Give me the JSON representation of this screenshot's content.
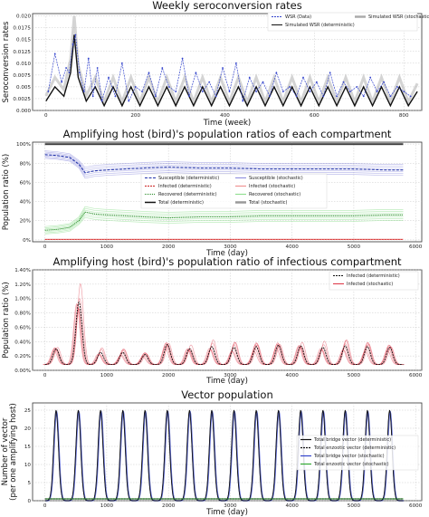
{
  "chart_data": [
    {
      "type": "line",
      "title": "Weekly seroconversion rates",
      "xlabel": "Time (week)",
      "ylabel": "Seroconversion rates",
      "xlim": [
        -30,
        840
      ],
      "ylim": [
        0.0,
        0.0205
      ],
      "xticks": [
        0,
        200,
        400,
        600,
        800
      ],
      "yticks": [
        0.0,
        0.0025,
        0.005,
        0.0075,
        0.01,
        0.0125,
        0.015,
        0.0175,
        0.02
      ],
      "xtick_labels": [
        "0",
        "200",
        "400",
        "600",
        "800"
      ],
      "ytick_labels": [
        "0.000",
        "0.0025",
        "0.005",
        "0.0075",
        "0.010",
        "0.0125",
        "0.015",
        "0.0175",
        "0.020"
      ],
      "grid": true,
      "legend_placement": "top-right",
      "series": [
        {
          "name": "WSR (Data)",
          "color": "#3344cc",
          "style": "dashed-markers",
          "x": [
            5,
            20,
            35,
            45,
            52,
            60,
            66,
            75,
            85,
            95,
            105,
            115,
            125,
            140,
            155,
            170,
            185,
            200,
            215,
            230,
            245,
            260,
            275,
            290,
            305,
            320,
            335,
            350,
            365,
            380,
            395,
            410,
            425,
            440,
            455,
            470,
            485,
            500,
            515,
            530,
            545,
            560,
            575,
            590,
            605,
            620,
            635,
            650,
            665,
            680,
            695,
            710,
            725,
            740,
            755,
            770,
            785,
            800,
            815
          ],
          "values": [
            0.004,
            0.012,
            0.006,
            0.009,
            0.008,
            0.014,
            0.016,
            0.008,
            0.004,
            0.011,
            0.003,
            0.009,
            0.002,
            0.007,
            0.003,
            0.01,
            0.002,
            0.005,
            0.004,
            0.008,
            0.003,
            0.009,
            0.005,
            0.004,
            0.011,
            0.003,
            0.008,
            0.004,
            0.006,
            0.003,
            0.009,
            0.004,
            0.01,
            0.002,
            0.007,
            0.004,
            0.006,
            0.003,
            0.008,
            0.004,
            0.005,
            0.003,
            0.007,
            0.004,
            0.006,
            0.003,
            0.008,
            0.003,
            0.006,
            0.004,
            0.005,
            0.003,
            0.007,
            0.004,
            0.006,
            0.003,
            0.005,
            0.004,
            0.003
          ]
        },
        {
          "name": "Simulated WSR (deterministic)",
          "color": "#111111",
          "style": "solid",
          "x": [
            0,
            20,
            40,
            55,
            63,
            72,
            90,
            110,
            130,
            150,
            170,
            190,
            210,
            230,
            250,
            270,
            290,
            310,
            330,
            350,
            370,
            390,
            410,
            430,
            450,
            470,
            490,
            510,
            530,
            550,
            570,
            590,
            610,
            630,
            650,
            670,
            690,
            710,
            730,
            750,
            770,
            790,
            810,
            830
          ],
          "values": [
            0.002,
            0.005,
            0.003,
            0.008,
            0.016,
            0.007,
            0.002,
            0.005,
            0.001,
            0.005,
            0.001,
            0.005,
            0.001,
            0.005,
            0.001,
            0.005,
            0.001,
            0.005,
            0.001,
            0.005,
            0.001,
            0.005,
            0.001,
            0.005,
            0.001,
            0.005,
            0.001,
            0.005,
            0.001,
            0.005,
            0.001,
            0.005,
            0.001,
            0.005,
            0.001,
            0.005,
            0.001,
            0.005,
            0.001,
            0.005,
            0.001,
            0.005,
            0.001,
            0.004
          ]
        },
        {
          "name": "Simulated WSR (stochastic)",
          "color": "#aaaaaa",
          "style": "band"
        }
      ]
    },
    {
      "type": "line",
      "title": "Amplifying host (bird)'s population ratios of each compartment",
      "xlabel": "Time (day)",
      "ylabel": "Population ratio (%)",
      "xlim": [
        -200,
        6100
      ],
      "ylim": [
        -2,
        102
      ],
      "xticks": [
        0,
        1000,
        2000,
        3000,
        4000,
        5000,
        6000
      ],
      "yticks": [
        0,
        20,
        40,
        60,
        80,
        100
      ],
      "xtick_labels": [
        "0",
        "1000",
        "2000",
        "3000",
        "4000",
        "5000",
        "6000"
      ],
      "ytick_labels": [
        "0%",
        "20%",
        "40%",
        "60%",
        "80%",
        "100%"
      ],
      "grid": true,
      "legend_placement": "center",
      "series": [
        {
          "name": "Susceptible (deterministic)",
          "color": "#2233aa",
          "style": "dashed",
          "x": [
            0,
            200,
            400,
            550,
            650,
            800,
            1000,
            1300,
            1600,
            2000,
            2500,
            3000,
            3500,
            4000,
            4500,
            5000,
            5500,
            5800
          ],
          "values": [
            89,
            88,
            86,
            79,
            70,
            72,
            73,
            74,
            75,
            76,
            75,
            75,
            74,
            74,
            74,
            74,
            73,
            73
          ]
        },
        {
          "name": "Susceptible (stochastic)",
          "color": "#8888dd",
          "style": "band"
        },
        {
          "name": "Infected (deterministic)",
          "color": "#cc2222",
          "style": "dashed",
          "x": [
            0,
            1000,
            2000,
            3000,
            4000,
            5000,
            5800
          ],
          "values": [
            0.5,
            0.5,
            0.5,
            0.5,
            0.5,
            0.5,
            0.5
          ]
        },
        {
          "name": "Infected (stochastic)",
          "color": "#ee8888",
          "style": "band"
        },
        {
          "name": "Recovered (deterministic)",
          "color": "#228822",
          "style": "dotted",
          "x": [
            0,
            200,
            400,
            550,
            650,
            800,
            1000,
            1300,
            1600,
            2000,
            2500,
            3000,
            3500,
            4000,
            4500,
            5000,
            5500,
            5800
          ],
          "values": [
            10,
            11,
            13,
            20,
            29,
            27,
            26,
            25,
            24,
            23,
            24,
            24,
            25,
            25,
            25,
            25,
            26,
            26
          ]
        },
        {
          "name": "Recovered (stochastic)",
          "color": "#88dd88",
          "style": "band"
        },
        {
          "name": "Total (deterministic)",
          "color": "#111111",
          "style": "solid",
          "x": [
            0,
            5800
          ],
          "values": [
            100,
            100
          ]
        },
        {
          "name": "Total (stochastic)",
          "color": "#999999",
          "style": "band"
        }
      ]
    },
    {
      "type": "line",
      "title": "Amplifying host (bird)'s population ratio of infectious compartment",
      "xlabel": "Time (day)",
      "ylabel": "Population ratio (%)",
      "xlim": [
        -200,
        6100
      ],
      "ylim": [
        0,
        1.4
      ],
      "xticks": [
        0,
        1000,
        2000,
        3000,
        4000,
        5000,
        6000
      ],
      "yticks": [
        0,
        0.2,
        0.4,
        0.6,
        0.8,
        1.0,
        1.2,
        1.4
      ],
      "xtick_labels": [
        "0",
        "1000",
        "2000",
        "3000",
        "4000",
        "5000",
        "6000"
      ],
      "ytick_labels": [
        "0.00%",
        "0.20%",
        "0.40%",
        "0.60%",
        "0.80%",
        "1.00%",
        "1.20%",
        "1.40%"
      ],
      "grid": true,
      "legend_placement": "top-right",
      "series": [
        {
          "name": "Infected (deterministic)",
          "color": "#111111",
          "style": "dashed",
          "peak_days": [
            180,
            550,
            900,
            1260,
            1620,
            1980,
            2340,
            2700,
            3060,
            3420,
            3780,
            4140,
            4500,
            4860,
            5220,
            5580
          ],
          "peak_values": [
            0.3,
            0.95,
            0.25,
            0.25,
            0.22,
            0.36,
            0.3,
            0.33,
            0.32,
            0.33,
            0.35,
            0.34,
            0.32,
            0.34,
            0.33,
            0.32
          ],
          "trough_value": 0.08
        },
        {
          "name": "Infected (stochastic)",
          "color": "#dd3344",
          "style": "band"
        }
      ]
    },
    {
      "type": "line",
      "title": "Vector population",
      "xlabel": "Time (day)",
      "ylabel": "Number of vector\n(per one amplifying host)",
      "xlim": [
        -200,
        6100
      ],
      "ylim": [
        0,
        27
      ],
      "xticks": [
        0,
        1000,
        2000,
        3000,
        4000,
        5000,
        6000
      ],
      "yticks": [
        0,
        5,
        10,
        15,
        20,
        25
      ],
      "xtick_labels": [
        "0",
        "1000",
        "2000",
        "3000",
        "4000",
        "5000",
        "6000"
      ],
      "ytick_labels": [
        "0",
        "5",
        "10",
        "15",
        "20",
        "25"
      ],
      "grid": true,
      "legend_placement": "center-right",
      "series": [
        {
          "name": "Total bridge vector (deterministic)",
          "color": "#111111",
          "style": "solid",
          "peak_days": [
            180,
            540,
            900,
            1260,
            1620,
            1980,
            2340,
            2700,
            3060,
            3420,
            3780,
            4140,
            4500,
            4860,
            5220,
            5580
          ],
          "peak_value": 25,
          "trough_value": 0
        },
        {
          "name": "Total enzootic vector (deterministic)",
          "color": "#111111",
          "style": "dashed",
          "x": [
            0,
            5800
          ],
          "values": [
            0.5,
            0.5
          ]
        },
        {
          "name": "Total bridge vector (stochastic)",
          "color": "#3344cc",
          "style": "band"
        },
        {
          "name": "Total enzootic vector (stochastic)",
          "color": "#33aa33",
          "style": "band"
        }
      ]
    }
  ]
}
